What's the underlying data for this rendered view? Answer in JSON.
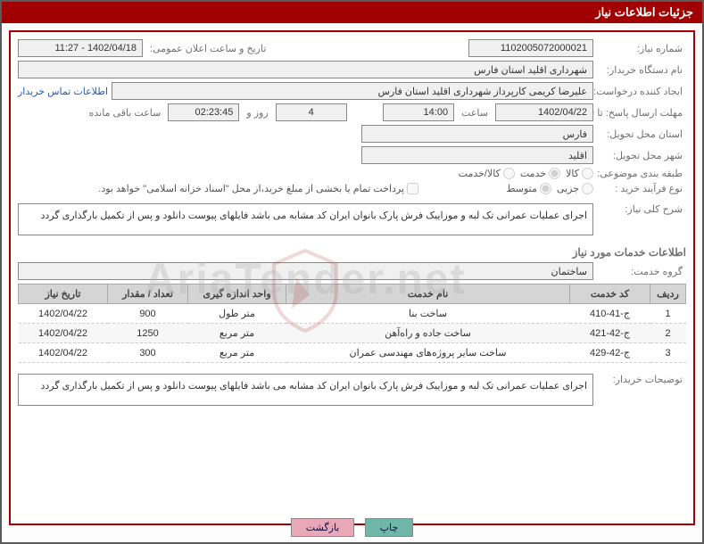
{
  "header": {
    "title": "جزئیات اطلاعات نیاز"
  },
  "form": {
    "need_no_label": "شماره نیاز:",
    "need_no": "1102005072000021",
    "announce_label": "تاریخ و ساعت اعلان عمومی:",
    "announce_value": "1402/04/18 - 11:27",
    "buyer_org_label": "نام دستگاه خریدار:",
    "buyer_org": "شهرداری اقلید استان فارس",
    "requester_label": "ایجاد کننده درخواست:",
    "requester": "علیرضا کریمی  کارپرداز شهرداری اقلید استان فارس",
    "contact_link": "اطلاعات تماس خریدار",
    "deadline_label": "مهلت ارسال پاسخ: تا تاریخ:",
    "deadline_date": "1402/04/22",
    "time_label": "ساعت",
    "deadline_time": "14:00",
    "days_remaining": "4",
    "days_word": "روز و",
    "time_remaining": "02:23:45",
    "remaining_suffix": "ساعت باقی مانده",
    "province_label": "استان محل تحویل:",
    "province": "فارس",
    "city_label": "شهر محل تحویل:",
    "city": "اقلید",
    "category_label": "طبقه بندی موضوعی:",
    "cat_goods": "کالا",
    "cat_service": "خدمت",
    "cat_both": "کالا/خدمت",
    "purchase_type_label": "نوع فرآیند خرید :",
    "pt_partial": "جزیی",
    "pt_medium": "متوسط",
    "payment_note": "پرداخت تمام یا بخشی از مبلغ خرید،از محل \"اسناد خزانه اسلامی\" خواهد بود.",
    "summary_label": "شرح کلی نیاز:",
    "summary_text": "اجرای عملیات عمرانی تک لبه و موزاییک فرش  پارک بانوان ایران کد مشابه می باشد فایلهای پیوست دانلود و پس از تکمیل بارگذاری گردد",
    "services_info_title": "اطلاعات خدمات مورد نیاز",
    "service_group_label": "گروه خدمت:",
    "service_group": "ساختمان",
    "buyer_desc_label": "توضیحات خریدار:",
    "buyer_desc_text": "اجرای عملیات عمرانی تک لبه و موزاییک فرش  پارک بانوان ایران کد مشابه می باشد فایلهای پیوست دانلود و پس از تکمیل بارگذاری گردد"
  },
  "table": {
    "columns": {
      "row": "ردیف",
      "code": "کد خدمت",
      "name": "نام خدمت",
      "unit": "واحد اندازه گیری",
      "qty": "تعداد / مقدار",
      "date": "تاریخ نیاز"
    },
    "rows": [
      {
        "row": "1",
        "code": "ج-41-410",
        "name": "ساخت بنا",
        "unit": "متر طول",
        "qty": "900",
        "date": "1402/04/22"
      },
      {
        "row": "2",
        "code": "ج-42-421",
        "name": "ساخت جاده و راه‌آهن",
        "unit": "متر مربع",
        "qty": "1250",
        "date": "1402/04/22"
      },
      {
        "row": "3",
        "code": "ج-42-429",
        "name": "ساخت سایر پروژه‌های مهندسی عمران",
        "unit": "متر مربع",
        "qty": "300",
        "date": "1402/04/22"
      }
    ]
  },
  "buttons": {
    "print": "چاپ",
    "back": "بازگشت"
  },
  "watermark": {
    "text": "AriaTender.net"
  },
  "colors": {
    "accent": "#a00000",
    "frame": "#5a5a5a",
    "label": "#707070",
    "link": "#1e5bb8",
    "th_bg": "#d5d5d5",
    "btn_teal": "#6fb5a8",
    "btn_pink": "#e8a8b8"
  }
}
